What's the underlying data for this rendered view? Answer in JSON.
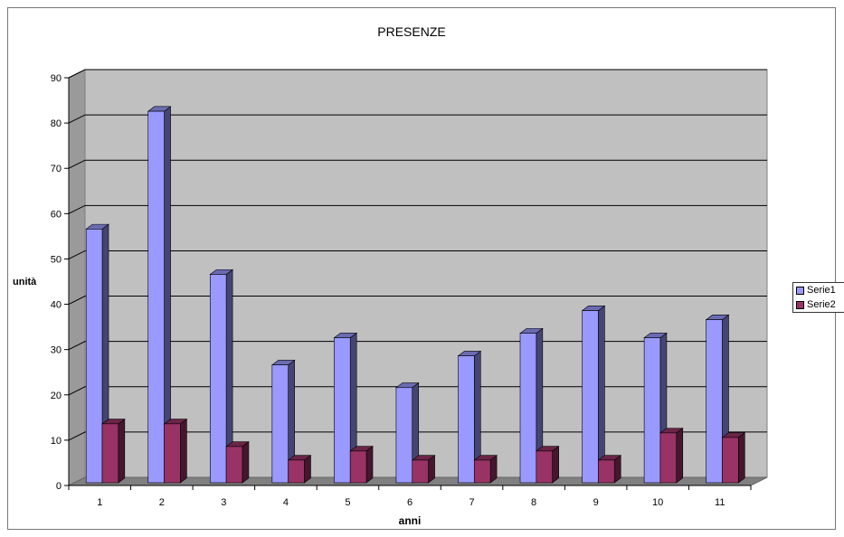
{
  "chart_data": {
    "type": "bar",
    "title": "PRESENZE",
    "xlabel": "anni",
    "ylabel": "unità",
    "categories": [
      "1",
      "2",
      "3",
      "4",
      "5",
      "6",
      "7",
      "8",
      "9",
      "10",
      "11"
    ],
    "ylim": [
      0,
      90
    ],
    "yticks": [
      0,
      10,
      20,
      30,
      40,
      50,
      60,
      70,
      80,
      90
    ],
    "grid": true,
    "legend_position": "right",
    "series": [
      {
        "name": "Serie1",
        "color": "#9999ff",
        "values": [
          56,
          82,
          46,
          26,
          32,
          21,
          28,
          33,
          38,
          32,
          36
        ]
      },
      {
        "name": "Serie2",
        "color": "#993366",
        "values": [
          13,
          13,
          8,
          5,
          7,
          5,
          5,
          7,
          5,
          11,
          10
        ]
      }
    ]
  }
}
